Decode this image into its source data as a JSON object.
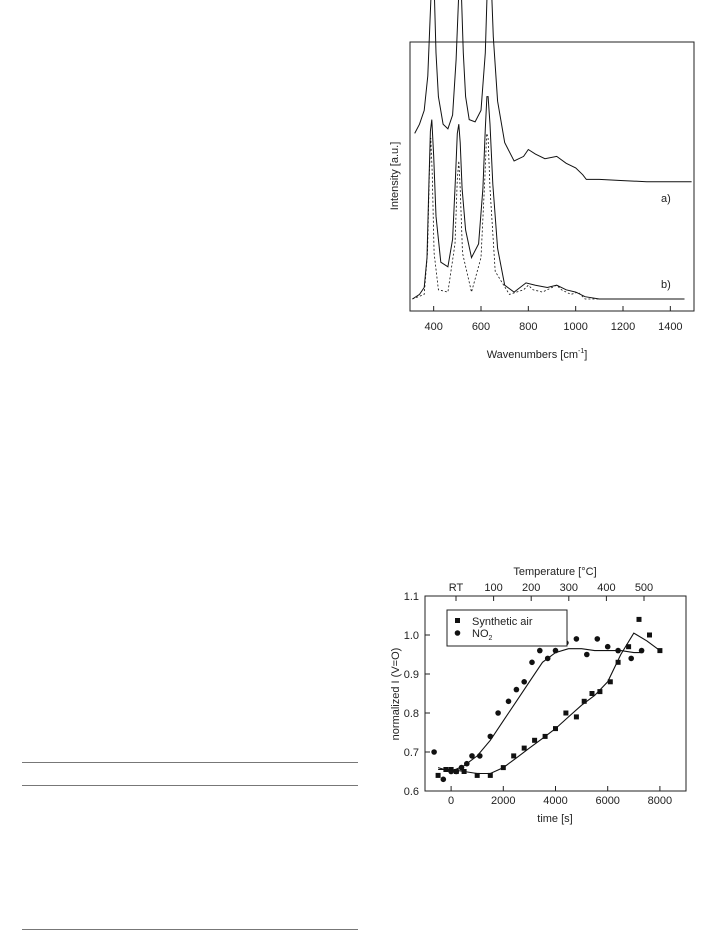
{
  "chart_data": [
    {
      "type": "line",
      "title": "",
      "xlabel": "Wavenumbers [cm",
      "xlabel_sup": "-1",
      "xlabel_tail": "]",
      "ylabel": "Intensity [a.u.]",
      "xlim": [
        300,
        1500
      ],
      "x_ticks": [
        400,
        600,
        800,
        1000,
        1200,
        1400
      ],
      "y_ticks": [],
      "series": [
        {
          "name": "a)",
          "offset": 0.52,
          "style": "solid",
          "x": [
            320,
            340,
            360,
            375,
            385,
            392,
            397,
            403,
            410,
            420,
            440,
            460,
            480,
            495,
            505,
            512,
            518,
            525,
            535,
            550,
            575,
            600,
            618,
            628,
            635,
            642,
            652,
            670,
            700,
            740,
            780,
            800,
            830,
            870,
            920,
            960,
            1000,
            1030,
            1045,
            1100,
            1200,
            1300,
            1400,
            1490
          ],
          "y": [
            0.2,
            0.24,
            0.3,
            0.45,
            0.7,
            0.88,
            0.9,
            0.8,
            0.55,
            0.36,
            0.24,
            0.22,
            0.28,
            0.52,
            0.78,
            0.88,
            0.78,
            0.55,
            0.36,
            0.26,
            0.25,
            0.3,
            0.55,
            0.88,
            1.0,
            0.9,
            0.62,
            0.34,
            0.16,
            0.08,
            0.1,
            0.13,
            0.11,
            0.09,
            0.1,
            0.07,
            0.05,
            0.02,
            0.0,
            0.0,
            -0.005,
            -0.01,
            -0.01,
            -0.01
          ]
        },
        {
          "name": "b)",
          "offset": 0.0,
          "style": "solid",
          "x": [
            310,
            340,
            360,
            372,
            380,
            386,
            392,
            400,
            410,
            430,
            460,
            480,
            492,
            500,
            506,
            512,
            520,
            535,
            560,
            590,
            608,
            618,
            625,
            630,
            638,
            650,
            670,
            700,
            740,
            790,
            830,
            880,
            920,
            960,
            1000,
            1040,
            1100,
            1200,
            1300,
            1400,
            1460
          ],
          "y": [
            0.0,
            0.02,
            0.05,
            0.18,
            0.5,
            0.73,
            0.78,
            0.62,
            0.36,
            0.16,
            0.14,
            0.26,
            0.52,
            0.72,
            0.76,
            0.68,
            0.48,
            0.3,
            0.18,
            0.24,
            0.48,
            0.74,
            0.88,
            0.88,
            0.76,
            0.5,
            0.22,
            0.06,
            0.03,
            0.07,
            0.06,
            0.05,
            0.06,
            0.04,
            0.03,
            0.01,
            0.0,
            0.0,
            0.0,
            0.0,
            0.0
          ]
        },
        {
          "name": "",
          "offset": 0.0,
          "style": "dashed",
          "x": [
            310,
            360,
            374,
            382,
            388,
            394,
            402,
            420,
            460,
            490,
            500,
            506,
            512,
            522,
            560,
            600,
            616,
            624,
            630,
            638,
            660,
            720,
            780,
            800,
            820,
            860,
            900,
            920,
            940,
            980,
            1010,
            1040,
            1100,
            1460
          ],
          "y": [
            0.0,
            0.02,
            0.2,
            0.55,
            0.7,
            0.55,
            0.2,
            0.04,
            0.03,
            0.24,
            0.52,
            0.6,
            0.48,
            0.2,
            0.03,
            0.18,
            0.52,
            0.72,
            0.7,
            0.48,
            0.12,
            0.02,
            0.04,
            0.06,
            0.04,
            0.03,
            0.05,
            0.06,
            0.04,
            0.02,
            0.03,
            0.0,
            0.0,
            0.0
          ]
        }
      ]
    },
    {
      "type": "scatter",
      "title": "",
      "xlabel": "time [s]",
      "ylabel": "normalized I (V=O)",
      "top_axis_label": "Temperature [°C]",
      "top_ticks": [
        "RT",
        "100",
        "200",
        "300",
        "400",
        "500"
      ],
      "xlim": [
        -1000,
        9000
      ],
      "ylim": [
        0.6,
        1.1
      ],
      "x_ticks": [
        0,
        2000,
        4000,
        6000,
        8000
      ],
      "y_ticks": [
        0.6,
        0.7,
        0.8,
        0.9,
        1.0,
        1.1
      ],
      "legend": [
        {
          "label": "Synthetic air",
          "marker": "square"
        },
        {
          "label": "NO",
          "sub": "2",
          "marker": "circle"
        }
      ],
      "series": [
        {
          "name": "Synthetic air",
          "marker": "square",
          "x": [
            -500,
            -200,
            0,
            200,
            500,
            1000,
            1500,
            2000,
            2400,
            2800,
            3200,
            3600,
            4000,
            4400,
            4800,
            5100,
            5400,
            5700,
            6100,
            6400,
            6800,
            7200,
            7600,
            8000
          ],
          "y": [
            0.64,
            0.655,
            0.655,
            0.65,
            0.65,
            0.64,
            0.64,
            0.66,
            0.69,
            0.71,
            0.73,
            0.74,
            0.76,
            0.8,
            0.79,
            0.83,
            0.85,
            0.855,
            0.88,
            0.93,
            0.97,
            1.04,
            1.0,
            0.96
          ],
          "fit": {
            "x": [
              -500,
              0,
              500,
              1000,
              1500,
              2000,
              2500,
              3000,
              3500,
              4000,
              4500,
              5000,
              5500,
              6000,
              6500,
              7000,
              7500,
              8000
            ],
            "y": [
              0.655,
              0.655,
              0.65,
              0.645,
              0.645,
              0.66,
              0.685,
              0.71,
              0.735,
              0.76,
              0.79,
              0.82,
              0.845,
              0.88,
              0.95,
              1.005,
              0.985,
              0.96
            ]
          }
        },
        {
          "name": "NO2",
          "marker": "circle",
          "x": [
            -650,
            -300,
            0,
            200,
            400,
            600,
            800,
            1100,
            1500,
            1800,
            2200,
            2500,
            2800,
            3100,
            3400,
            3700,
            4000,
            4400,
            4800,
            5200,
            5600,
            6000,
            6400,
            6900,
            7300
          ],
          "y": [
            0.7,
            0.63,
            0.65,
            0.65,
            0.66,
            0.67,
            0.69,
            0.69,
            0.74,
            0.8,
            0.83,
            0.86,
            0.88,
            0.93,
            0.96,
            0.94,
            0.96,
            0.98,
            0.99,
            0.95,
            0.99,
            0.97,
            0.96,
            0.94,
            0.96
          ],
          "fit": {
            "x": [
              -500,
              0,
              500,
              1000,
              1500,
              2000,
              2500,
              3000,
              3500,
              4000,
              4500,
              5000,
              5500,
              6000,
              6500,
              7000,
              7300
            ],
            "y": [
              0.66,
              0.65,
              0.665,
              0.69,
              0.73,
              0.78,
              0.83,
              0.88,
              0.93,
              0.955,
              0.965,
              0.965,
              0.96,
              0.96,
              0.96,
              0.955,
              0.955
            ]
          }
        }
      ]
    }
  ]
}
